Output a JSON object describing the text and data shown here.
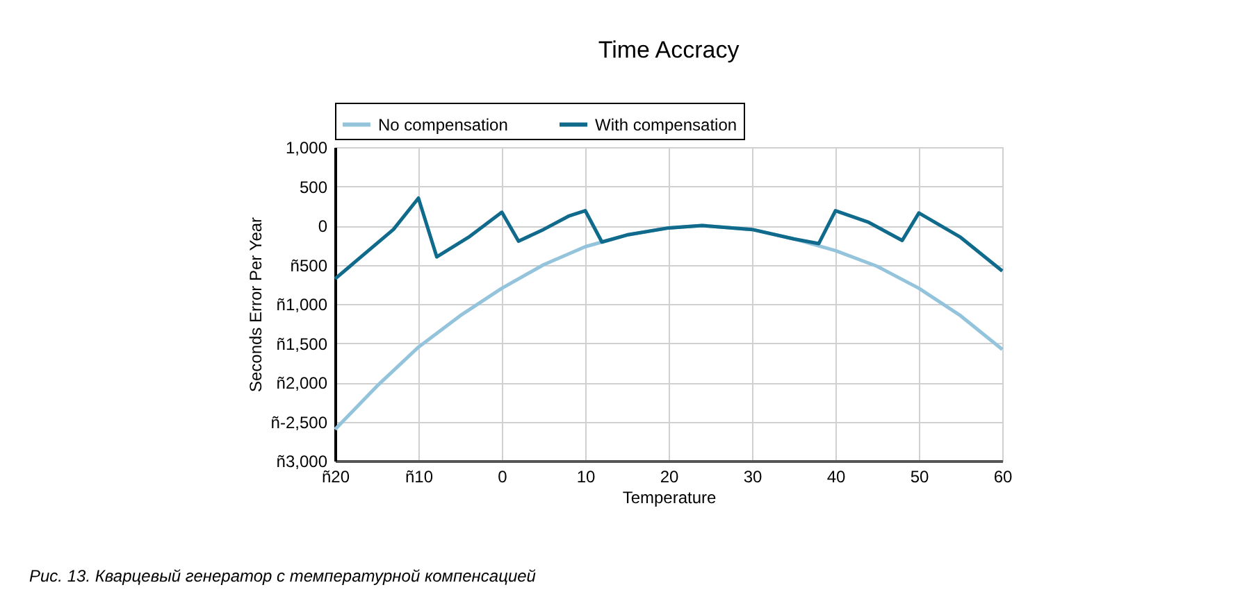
{
  "chart_data": {
    "type": "line",
    "title": "Time Accracy",
    "xlabel": "Temperature",
    "ylabel": "Seconds Error Per Year",
    "annotations": [
      "Рис. 13. Кварцевый генератор с температурной компенсацией"
    ],
    "xlim": [
      -20,
      60
    ],
    "ylim": [
      -3000,
      1000
    ],
    "xticks": [
      {
        "value": -20,
        "label": "ñ20"
      },
      {
        "value": -10,
        "label": "ñ10"
      },
      0,
      10,
      20,
      30,
      40,
      50,
      60
    ],
    "yticks": [
      {
        "value": -3000,
        "label": "ñ3,000"
      },
      {
        "value": -2500,
        "label": "ñ-2,500"
      },
      {
        "value": -2000,
        "label": "ñ2,000"
      },
      {
        "value": -1500,
        "label": "ñ1,500"
      },
      {
        "value": -1000,
        "label": "ñ1,000"
      },
      {
        "value": -500,
        "label": "ñ500"
      },
      0,
      500,
      {
        "value": 1000,
        "label": "1,000"
      }
    ],
    "grid": true,
    "legend": "top",
    "line_style": "solid",
    "marker": "none",
    "series": [
      {
        "name": "No compensation",
        "color": "#94c4dc",
        "x": [
          -20,
          -15,
          -10,
          -5,
          0,
          5,
          10,
          15,
          20,
          24,
          30,
          35,
          40,
          45,
          50,
          55,
          60
        ],
        "values": [
          -2600,
          -2050,
          -1550,
          -1150,
          -800,
          -500,
          -270,
          -120,
          -30,
          0,
          -50,
          -170,
          -320,
          -520,
          -800,
          -1150,
          -1580
        ]
      },
      {
        "name": "With compensation",
        "color": "#0f6a8c",
        "x": [
          -20,
          -16,
          -13,
          -10,
          -7.8,
          -4,
          0,
          2,
          5,
          8,
          10,
          12,
          15,
          20,
          24,
          30,
          35,
          38,
          40,
          44,
          48,
          50,
          55,
          60
        ],
        "values": [
          -680,
          -320,
          -50,
          350,
          -400,
          -150,
          170,
          -200,
          -50,
          120,
          190,
          -210,
          -120,
          -30,
          0,
          -50,
          -170,
          -230,
          190,
          40,
          -190,
          160,
          -150,
          -580
        ]
      }
    ]
  }
}
